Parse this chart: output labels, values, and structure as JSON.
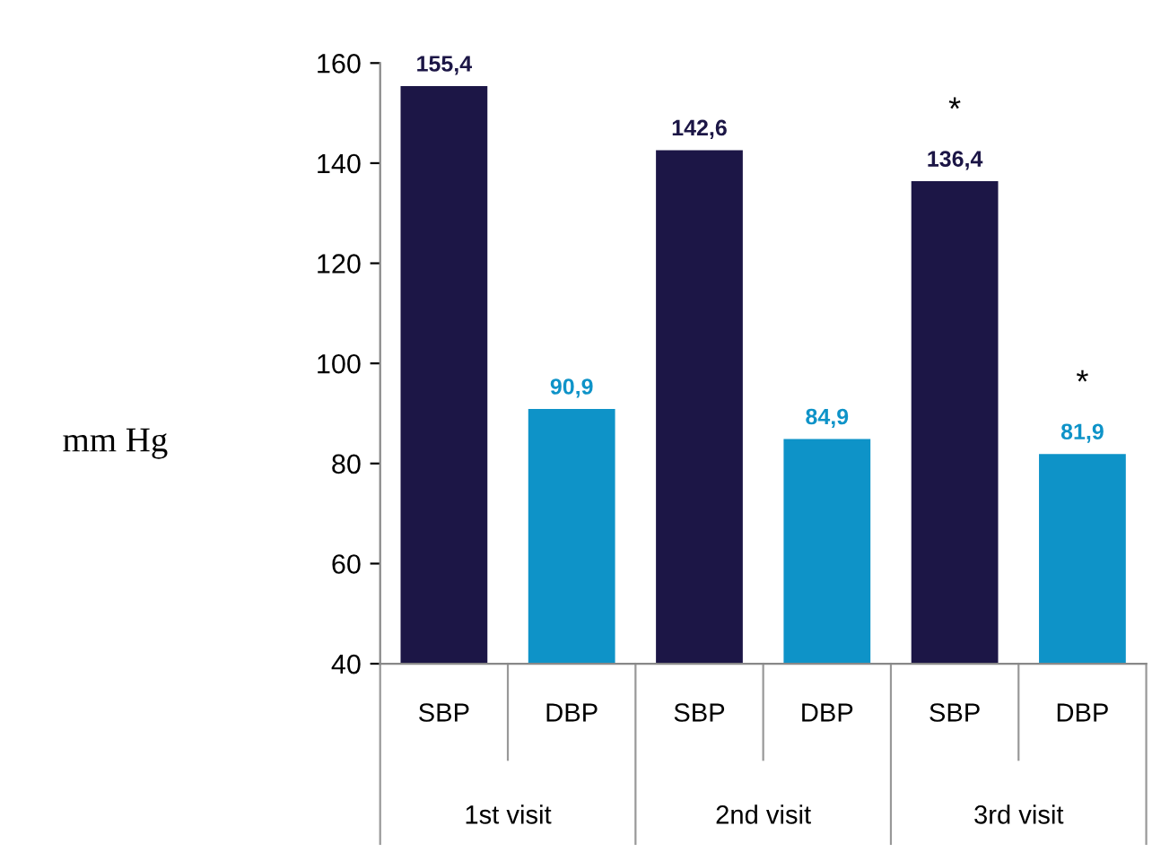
{
  "chart_data": {
    "type": "bar",
    "ylabel": "mm Hg",
    "categories": [
      "1st visit",
      "2nd visit",
      "3rd visit"
    ],
    "series": [
      {
        "name": "SBP",
        "color": "#1c1646",
        "values": [
          155.4,
          142.6,
          136.4
        ],
        "value_labels": [
          "155,4",
          "142,6",
          "136,4"
        ]
      },
      {
        "name": "DBP",
        "color": "#0e93c8",
        "values": [
          90.9,
          84.9,
          81.9
        ],
        "value_labels": [
          "90,9",
          "84,9",
          "81,9"
        ]
      }
    ],
    "annotations": [
      "*",
      "*"
    ],
    "ylim": [
      40,
      160
    ],
    "yticks": [
      40,
      60,
      80,
      100,
      120,
      140,
      160
    ],
    "grid": false,
    "legend": false
  }
}
